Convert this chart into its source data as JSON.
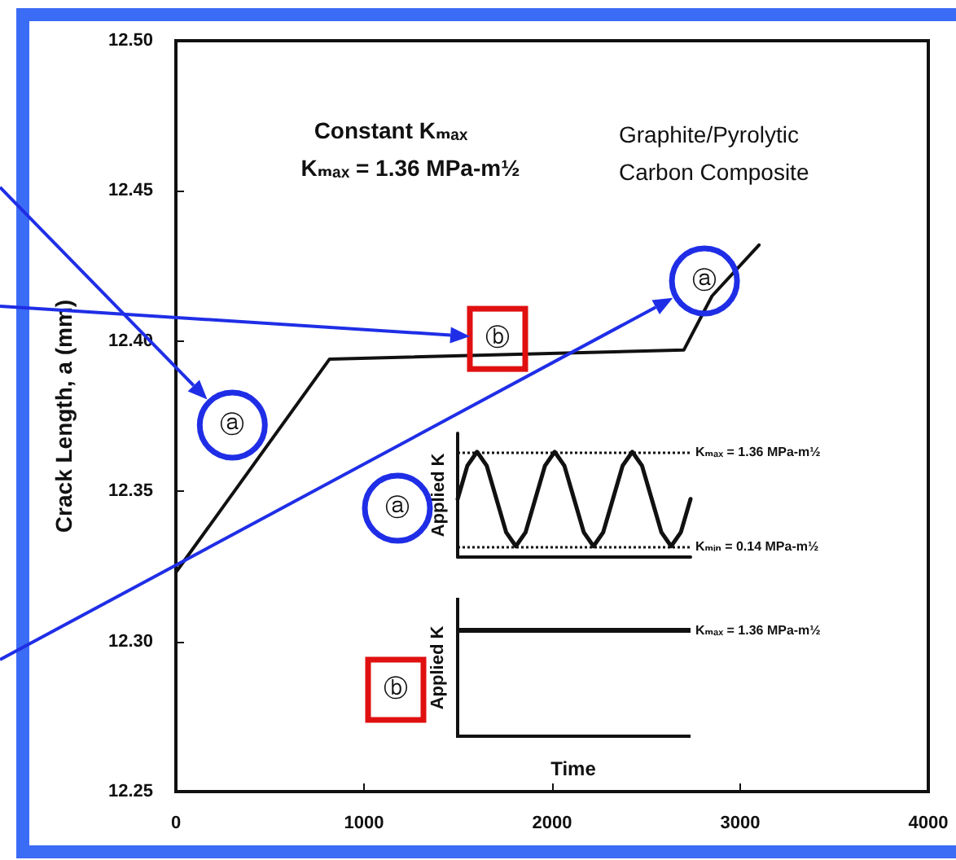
{
  "chart_data": [
    {
      "type": "line",
      "ylabel": "Crack Length, a (mm)",
      "x": [
        0,
        817,
        2700,
        2850,
        3100
      ],
      "series": [
        {
          "color": "#111111",
          "values": [
            12.323,
            12.394,
            12.397,
            12.415,
            12.432
          ]
        }
      ],
      "xlim": [
        0,
        4000
      ],
      "xticks": [
        0,
        1000,
        2000,
        3000,
        4000
      ],
      "ylim": [
        12.25,
        12.5
      ],
      "yticks": [
        12.25,
        {
          "value": 12.3,
          "label": "12.30"
        },
        12.35,
        {
          "value": 12.4,
          "label": "12.40"
        },
        12.45,
        {
          "value": 12.5,
          "label": "12.50"
        }
      ],
      "grid": false,
      "marker": "none",
      "line_style": "solid",
      "annotations": [
        "Constant Kₘₐₓ",
        "Kₘₐₓ = 1.36 MPa-m½",
        "Graphite/Pyrolytic\nCarbon Composite",
        {
          "text": "ⓐ",
          "x": 300,
          "y": 12.372
        },
        {
          "text": "ⓑ",
          "x": 1710,
          "y": 12.401
        },
        {
          "text": "ⓐ",
          "x": 2810,
          "y": 12.42
        },
        "ⓐ",
        "ⓑ",
        "Applied K",
        "Kₘₐₓ = 1.36 MPa-m½",
        "Time"
      ]
    },
    {
      "type": "line",
      "ylabel": "Applied K",
      "categories": [
        null,
        null,
        null,
        null,
        null,
        null,
        null,
        null,
        null,
        null,
        null,
        null,
        null,
        null,
        null,
        null,
        null,
        null,
        null,
        null,
        null,
        null,
        null,
        null,
        null
      ],
      "series": [
        {
          "color": "#111111",
          "values": [
            0.75,
            1.18,
            1.36,
            1.18,
            0.75,
            0.32,
            0.14,
            0.32,
            0.75,
            1.18,
            1.36,
            1.18,
            0.75,
            0.32,
            0.14,
            0.32,
            0.75,
            1.18,
            1.36,
            1.18,
            0.75,
            0.32,
            0.14,
            0.32,
            0.75
          ]
        }
      ],
      "ylim": [
        0,
        1.6
      ],
      "grid": false,
      "marker": "none",
      "line_style": "solid",
      "ref_lines": [
        {
          "axis": "y",
          "value": 1.36,
          "label": "Kₘₐₓ = 1.36 MPa-m½",
          "line_style": "dotted",
          "color": "#111111"
        },
        {
          "axis": "y",
          "value": 0.14,
          "label": "Kₘᵢₙ = 0.14 MPa-m½",
          "line_style": "dotted",
          "color": "#111111"
        }
      ]
    }
  ]
}
